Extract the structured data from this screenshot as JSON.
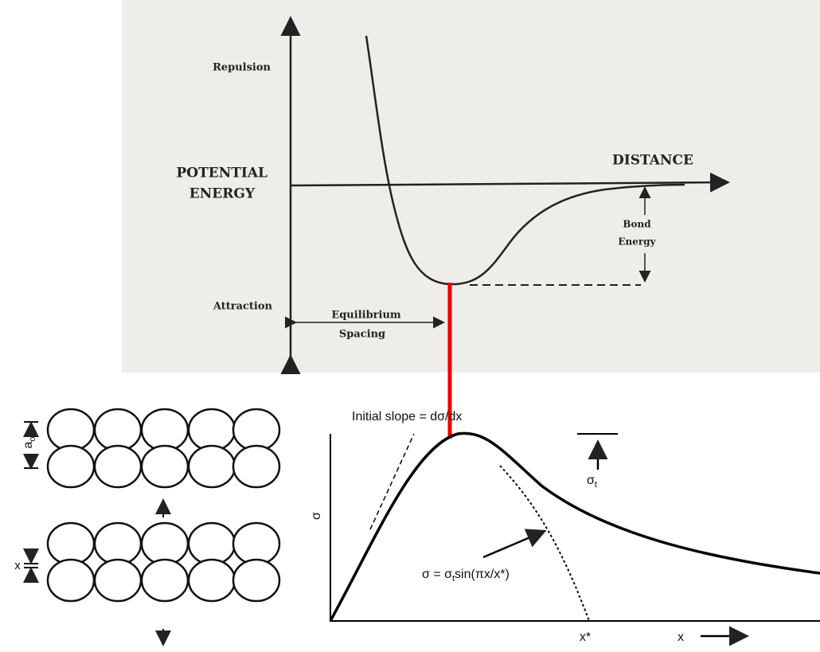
{
  "energy_diagram": {
    "repulsion": "Repulsion",
    "y_label": [
      "POTENTIAL",
      "ENERGY"
    ],
    "x_label": "DISTANCE",
    "bond_energy": [
      "Bond",
      "Energy"
    ],
    "attraction": "Attraction",
    "equilibrium_spacing": [
      "Equilibrium",
      "Spacing"
    ]
  },
  "lattice": {
    "spacing_label": "a",
    "spacing_sub": "o",
    "displacement_label": "x"
  },
  "stress_diagram": {
    "initial_slope": "Initial slope = dσ/dx",
    "peak_label": "σ",
    "peak_sub": "t",
    "y_label": "σ",
    "formula": [
      "σ = σ",
      "t",
      "sin(πx/x*)"
    ],
    "x_star": "x*",
    "x_label": "x"
  }
}
